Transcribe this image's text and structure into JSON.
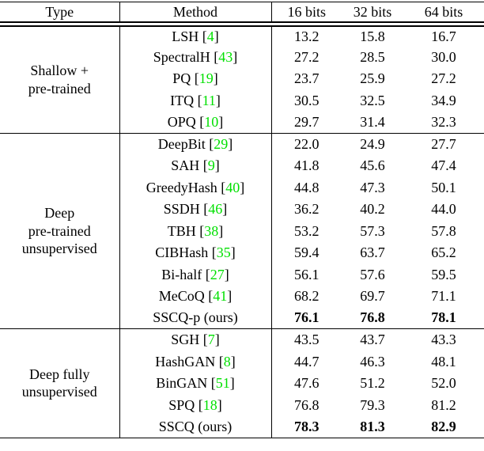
{
  "table": {
    "citation_color": "#00e000",
    "headers": [
      "Type",
      "Method",
      "16 bits",
      "32 bits",
      "64 bits"
    ],
    "sections": [
      {
        "type_label_lines": [
          "Shallow +",
          "pre-trained"
        ],
        "rows": [
          {
            "method": "LSH",
            "cite": "4",
            "values": [
              "13.2",
              "15.8",
              "16.7"
            ],
            "bold": false
          },
          {
            "method": "SpectralH",
            "cite": "43",
            "values": [
              "27.2",
              "28.5",
              "30.0"
            ],
            "bold": false
          },
          {
            "method": "PQ",
            "cite": "19",
            "values": [
              "23.7",
              "25.9",
              "27.2"
            ],
            "bold": false
          },
          {
            "method": "ITQ",
            "cite": "11",
            "values": [
              "30.5",
              "32.5",
              "34.9"
            ],
            "bold": false
          },
          {
            "method": "OPQ",
            "cite": "10",
            "values": [
              "29.7",
              "31.4",
              "32.3"
            ],
            "bold": false
          }
        ]
      },
      {
        "type_label_lines": [
          "Deep",
          "pre-trained",
          "unsupervised"
        ],
        "rows": [
          {
            "method": "DeepBit",
            "cite": "29",
            "values": [
              "22.0",
              "24.9",
              "27.7"
            ],
            "bold": false
          },
          {
            "method": "SAH",
            "cite": "9",
            "values": [
              "41.8",
              "45.6",
              "47.4"
            ],
            "bold": false
          },
          {
            "method": "GreedyHash",
            "cite": "40",
            "values": [
              "44.8",
              "47.3",
              "50.1"
            ],
            "bold": false
          },
          {
            "method": "SSDH",
            "cite": "46",
            "values": [
              "36.2",
              "40.2",
              "44.0"
            ],
            "bold": false
          },
          {
            "method": "TBH",
            "cite": "38",
            "values": [
              "53.2",
              "57.3",
              "57.8"
            ],
            "bold": false
          },
          {
            "method": "CIBHash",
            "cite": "35",
            "values": [
              "59.4",
              "63.7",
              "65.2"
            ],
            "bold": false
          },
          {
            "method": "Bi-half",
            "cite": "27",
            "values": [
              "56.1",
              "57.6",
              "59.5"
            ],
            "bold": false
          },
          {
            "method": "MeCoQ",
            "cite": "41",
            "values": [
              "68.2",
              "69.7",
              "71.1"
            ],
            "bold": false
          },
          {
            "method": "SSCQ-p (ours)",
            "cite": null,
            "values": [
              "76.1",
              "76.8",
              "78.1"
            ],
            "bold": true
          }
        ]
      },
      {
        "type_label_lines": [
          "Deep fully",
          "unsupervised"
        ],
        "rows": [
          {
            "method": "SGH",
            "cite": "7",
            "values": [
              "43.5",
              "43.7",
              "43.3"
            ],
            "bold": false
          },
          {
            "method": "HashGAN",
            "cite": "8",
            "values": [
              "44.7",
              "46.3",
              "48.1"
            ],
            "bold": false
          },
          {
            "method": "BinGAN",
            "cite": "51",
            "values": [
              "47.6",
              "51.2",
              "52.0"
            ],
            "bold": false
          },
          {
            "method": "SPQ",
            "cite": "18",
            "values": [
              "76.8",
              "79.3",
              "81.2"
            ],
            "bold": false
          },
          {
            "method": "SSCQ (ours)",
            "cite": null,
            "values": [
              "78.3",
              "81.3",
              "82.9"
            ],
            "bold": true
          }
        ]
      }
    ]
  }
}
